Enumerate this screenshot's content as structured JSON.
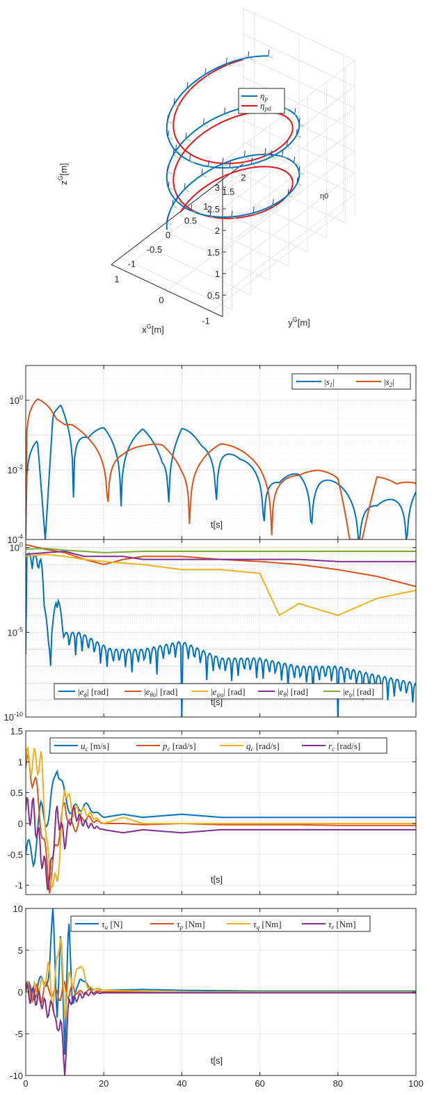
{
  "colors": {
    "blue": "#0072BD",
    "orange": "#D95319",
    "yellow": "#EDB120",
    "purple": "#7E2F8E",
    "green": "#77AC30",
    "red": "#E8141C"
  },
  "chart_data": [
    {
      "type": "line",
      "projection": "3d",
      "xlabel": "x^G[m]",
      "ylabel": "y^G[m]",
      "zlabel": "z^G[m]",
      "xticks": [
        "-1",
        "0",
        "1"
      ],
      "yticks": [
        "-1",
        "-0.5",
        "0",
        "0.5",
        "1",
        "1.5",
        "2"
      ],
      "zticks": [
        "0.5",
        "1",
        "1.5",
        "2",
        "2.5",
        "3"
      ],
      "annotation": "η0",
      "legend_position": "top-right",
      "series": [
        {
          "name": "ηp",
          "color": "blue",
          "shape": "helix",
          "radius": 1,
          "z": [
            0.6,
            3.3
          ],
          "start": {
            "x": 0,
            "y": 2,
            "z": 1.45
          }
        },
        {
          "name": "ηpd",
          "color": "red",
          "shape": "helix",
          "radius": 1,
          "z": [
            0.5,
            3.3
          ]
        }
      ]
    },
    {
      "type": "line",
      "yscale": "log",
      "xlim": [
        0,
        100
      ],
      "ylim": [
        0.0001,
        10
      ],
      "xlabel": "t[s]",
      "yticks": [
        "10^0",
        "10^-2",
        "10^-4"
      ],
      "grid": true,
      "legend_position": "top-right",
      "series": [
        {
          "name": "|s1|",
          "color": "blue",
          "x": [
            0,
            3,
            5,
            7,
            9,
            12,
            16,
            20,
            25,
            30,
            35,
            40,
            45,
            50,
            55,
            60,
            65,
            70,
            75,
            80,
            85,
            90,
            95,
            100
          ],
          "y": [
            0.1,
            0.1,
            0.0001,
            0.4,
            1,
            0.3,
            0.1,
            0.18,
            0.07,
            0.15,
            0.04,
            0.2,
            0.06,
            0.06,
            0.02,
            0.015,
            0.005,
            0.01,
            0.008,
            0.004,
            0.002,
            0.001,
            0.002,
            0.004
          ]
        },
        {
          "name": "|s2|",
          "color": "orange",
          "x": [
            0,
            3,
            6,
            8,
            10,
            12,
            16,
            20,
            25,
            30,
            35,
            40,
            45,
            50,
            55,
            60,
            65,
            70,
            75,
            80,
            85,
            90,
            95,
            100
          ],
          "y": [
            3,
            2.5,
            0.8,
            0.3,
            0.2,
            0.2,
            0.12,
            0.08,
            0.05,
            0.05,
            0.06,
            0.03,
            0.04,
            0.06,
            0.04,
            0.025,
            0.012,
            0.008,
            0.01,
            0.01,
            0.0001,
            0.008,
            0.004,
            0.006
          ]
        }
      ]
    },
    {
      "type": "line",
      "yscale": "log",
      "xlim": [
        0,
        100
      ],
      "ylim": [
        1e-10,
        3
      ],
      "xlabel": "t[s]",
      "yticks": [
        "10^0",
        "10^-5",
        "10^-10"
      ],
      "grid": true,
      "legend_position": "bottom",
      "series": [
        {
          "name": "|eϕ| [rad]",
          "color": "blue",
          "x": [
            0,
            2,
            4,
            6,
            8,
            10,
            14,
            18,
            22,
            30,
            40,
            50,
            60,
            70,
            80,
            90,
            100
          ],
          "y": [
            0.5,
            0.4,
            0.2,
            1e-06,
            0.003,
            1e-05,
            1e-05,
            3e-06,
            1e-06,
            1e-06,
            3e-06,
            3e-07,
            3e-07,
            1e-07,
            1e-07,
            3e-08,
            1e-08
          ]
        },
        {
          "name": "|eθa| [rad]",
          "color": "orange",
          "x": [
            0,
            5,
            10,
            15,
            20,
            25,
            30,
            40,
            50,
            60,
            70,
            80,
            90,
            100
          ],
          "y": [
            1.5,
            0.8,
            0.5,
            0.2,
            0.1,
            0.2,
            0.3,
            0.3,
            0.2,
            0.15,
            0.1,
            0.05,
            0.02,
            0.005
          ]
        },
        {
          "name": "|eψa| [rad]",
          "color": "yellow",
          "x": [
            0,
            5,
            10,
            15,
            20,
            30,
            40,
            50,
            60,
            65,
            70,
            80,
            90,
            100
          ],
          "y": [
            0.3,
            0.4,
            0.3,
            0.2,
            0.15,
            0.1,
            0.05,
            0.05,
            0.03,
            0.0001,
            0.0005,
            0.0001,
            0.001,
            0.003
          ]
        },
        {
          "name": "|eθ| [rad]",
          "color": "purple",
          "x": [
            0,
            5,
            10,
            15,
            20,
            25,
            30,
            40,
            50,
            60,
            70,
            80,
            90,
            100
          ],
          "y": [
            0.4,
            0.5,
            0.6,
            0.3,
            0.3,
            0.3,
            0.2,
            0.2,
            0.2,
            0.2,
            0.2,
            0.15,
            0.15,
            0.15
          ]
        },
        {
          "name": "|eψ| [rad]",
          "color": "green",
          "x": [
            0,
            5,
            10,
            15,
            20,
            30,
            40,
            50,
            60,
            70,
            80,
            90,
            100
          ],
          "y": [
            0.8,
            0.9,
            0.7,
            0.6,
            0.5,
            0.6,
            0.6,
            0.6,
            0.6,
            0.6,
            0.6,
            0.6,
            0.6
          ]
        }
      ]
    },
    {
      "type": "line",
      "xlim": [
        0,
        100
      ],
      "ylim": [
        -1.15,
        1.5
      ],
      "xlabel": "t[s]",
      "yticks": [
        "1.5",
        "1",
        "0.5",
        "0",
        "-0.5",
        "-1"
      ],
      "grid": true,
      "legend_position": "top",
      "series": [
        {
          "name": "uc [m/s]",
          "color": "blue",
          "x": [
            0,
            2,
            4,
            6,
            8,
            10,
            12,
            15,
            20,
            25,
            30,
            40,
            50,
            60,
            70,
            80,
            90,
            100
          ],
          "y": [
            -0.5,
            -0.5,
            0.2,
            0.1,
            1,
            0.4,
            0.2,
            0.3,
            0.1,
            0.15,
            0.1,
            0.15,
            0.1,
            0.1,
            0.1,
            0.1,
            0.1,
            0.1
          ]
        },
        {
          "name": "pc [rad/s]",
          "color": "orange",
          "x": [
            0,
            2,
            4,
            6,
            8,
            10,
            12,
            15,
            20,
            25,
            30,
            40,
            50,
            60,
            70,
            80,
            90,
            100
          ],
          "y": [
            0.9,
            0.8,
            0,
            -1,
            -0.3,
            0.3,
            -0.1,
            0.1,
            0,
            0,
            -0.02,
            0,
            -0.02,
            -0.02,
            -0.02,
            -0.03,
            -0.03,
            -0.03
          ]
        },
        {
          "name": "qc [rad/s]",
          "color": "yellow",
          "x": [
            0,
            2,
            4,
            6,
            8,
            10,
            12,
            15,
            20,
            25,
            30,
            40,
            50,
            60,
            70,
            80,
            90,
            100
          ],
          "y": [
            1,
            1,
            1,
            -0.8,
            -1,
            0.6,
            0.2,
            0.2,
            0,
            0.1,
            0,
            0,
            0,
            0,
            0,
            0,
            0,
            0
          ]
        },
        {
          "name": "rc [rad/s]",
          "color": "purple",
          "x": [
            0,
            2,
            4,
            6,
            8,
            10,
            12,
            15,
            20,
            25,
            30,
            40,
            50,
            60,
            70,
            80,
            90,
            100
          ],
          "y": [
            0.2,
            0.2,
            -0.5,
            -1,
            0.2,
            -0.3,
            0.2,
            0,
            -0.1,
            -0.15,
            -0.1,
            -0.15,
            -0.1,
            -0.1,
            -0.1,
            -0.1,
            -0.1,
            -0.1
          ]
        }
      ]
    },
    {
      "type": "line",
      "xlim": [
        0,
        100
      ],
      "ylim": [
        -10,
        10
      ],
      "xlabel": "t[s]",
      "xticks": [
        "0",
        "20",
        "40",
        "60",
        "80",
        "100"
      ],
      "yticks": [
        "10",
        "5",
        "0",
        "-5",
        "-10"
      ],
      "grid": true,
      "legend_position": "top",
      "series": [
        {
          "name": "τu [N]",
          "color": "blue",
          "x": [
            0,
            2,
            4,
            6,
            7,
            8,
            9,
            10,
            11,
            12,
            14,
            16,
            20,
            30,
            40,
            60,
            80,
            100
          ],
          "y": [
            0,
            0,
            1,
            2,
            10,
            -3,
            8,
            -8,
            10,
            -2,
            2,
            0.5,
            0.2,
            0.3,
            0.2,
            0.1,
            0.1,
            0.1
          ]
        },
        {
          "name": "τp [Nm]",
          "color": "orange",
          "x": [
            0,
            2,
            4,
            6,
            7,
            8,
            9,
            10,
            11,
            12,
            14,
            16,
            20,
            30,
            40,
            60,
            80,
            100
          ],
          "y": [
            0,
            0,
            -0.5,
            1,
            -1,
            0.5,
            -1,
            1,
            -0.5,
            0.5,
            -0.2,
            0.1,
            0,
            0,
            0,
            0,
            0,
            0
          ]
        },
        {
          "name": "τq [Nm]",
          "color": "yellow",
          "x": [
            0,
            2,
            4,
            6,
            7,
            8,
            9,
            10,
            11,
            12,
            14,
            16,
            20,
            30,
            40,
            60,
            80,
            100
          ],
          "y": [
            0,
            0,
            0.5,
            3,
            -2,
            4,
            7,
            -3,
            2,
            1,
            3.5,
            0.5,
            0.2,
            0.1,
            0,
            0,
            0,
            0
          ]
        },
        {
          "name": "τr [Nm]",
          "color": "purple",
          "x": [
            0,
            2,
            4,
            6,
            7,
            8,
            9,
            10,
            11,
            12,
            14,
            16,
            20,
            30,
            40,
            60,
            80,
            100
          ],
          "y": [
            0,
            -0.5,
            -1,
            -2.5,
            -1,
            -5,
            -3,
            -10,
            -1,
            -1,
            -0.5,
            -0.2,
            -0.1,
            -0.1,
            -0.1,
            -0.1,
            -0.1,
            -0.1
          ]
        }
      ]
    }
  ]
}
